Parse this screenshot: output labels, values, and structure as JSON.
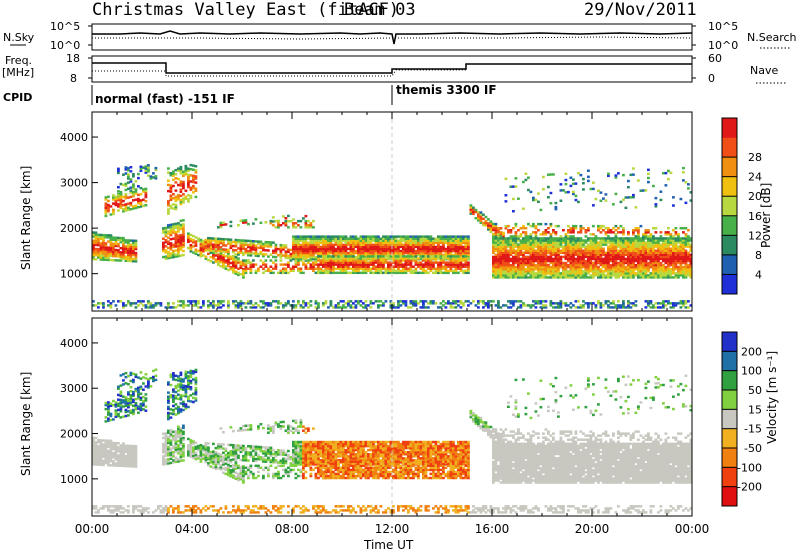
{
  "header": {
    "title": "Christmas Valley East (fitACF)",
    "beam": "Beam 03",
    "date": "29/Nov/2011"
  },
  "param_panels": {
    "nsky_label": "N.Sky",
    "nsky_ticks": [
      "10^5",
      "10^0"
    ],
    "nsearch_label": "N.Search",
    "nsearch_ticks": [
      "10^5",
      "10^0"
    ],
    "freq_label_1": "Freq.",
    "freq_label_2": "[MHz]",
    "freq_ticks": [
      "18",
      "8"
    ],
    "nave_label": "Nave",
    "nave_ticks": [
      "60",
      "0"
    ],
    "cpid_label": "CPID",
    "cpid_segments": [
      "normal (fast) -151 IF",
      "themis 3300 IF"
    ]
  },
  "chart_data": [
    {
      "type": "heatmap",
      "name": "power-panel",
      "ylabel": "Slant Range [km]",
      "xlabel": "",
      "y_ticks": [
        "1000",
        "2000",
        "3000",
        "4000"
      ],
      "ylim": [
        180,
        4550
      ],
      "colorbar": {
        "label": "Power [dB]",
        "ticks": [
          "4",
          "8",
          "12",
          "16",
          "20",
          "24",
          "28"
        ],
        "colors": [
          "#2030d8",
          "#2060b0",
          "#2c8a60",
          "#48b048",
          "#b8d840",
          "#f0c010",
          "#f09010",
          "#f05018",
          "#e01818"
        ]
      }
    },
    {
      "type": "heatmap",
      "name": "velocity-panel",
      "ylabel": "Slant Range [km]",
      "xlabel": "Time UT",
      "x_ticks": [
        "00:00",
        "04:00",
        "08:00",
        "12:00",
        "16:00",
        "20:00",
        "00:00"
      ],
      "y_ticks": [
        "1000",
        "2000",
        "3000",
        "4000"
      ],
      "ylim": [
        180,
        4550
      ],
      "colorbar": {
        "label": "Velocity [m s⁻¹]",
        "ticks": [
          "200",
          "100",
          "50",
          "15",
          "-15",
          "-50",
          "-100",
          "-200"
        ],
        "colors": [
          "#2030c8",
          "#2070a8",
          "#30a040",
          "#80d040",
          "#c8c8c0",
          "#f0b020",
          "#f08010",
          "#f04010",
          "#e01010"
        ]
      }
    }
  ]
}
